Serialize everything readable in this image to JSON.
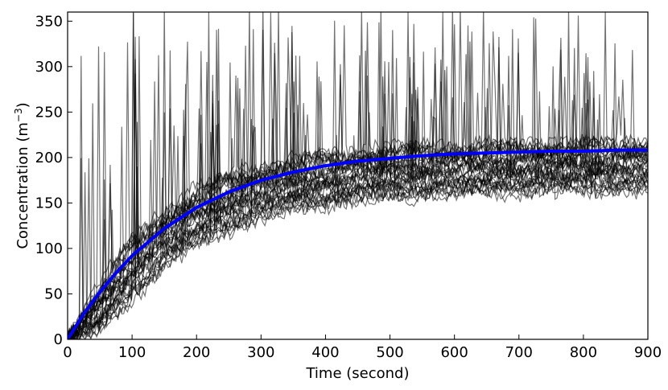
{
  "chart_data": {
    "type": "line",
    "title": "",
    "xlabel": "Time (second)",
    "ylabel_prefix": "Concentration (m",
    "ylabel_exponent": "−3",
    "ylabel_suffix": ")",
    "xlim": [
      0,
      900
    ],
    "ylim": [
      0,
      360
    ],
    "x_ticks": [
      0,
      100,
      200,
      300,
      400,
      500,
      600,
      700,
      800,
      900
    ],
    "y_ticks": [
      0,
      50,
      100,
      150,
      200,
      250,
      300,
      350
    ],
    "grid": false,
    "legend": "none",
    "series": [
      {
        "role": "mean",
        "color": "#0000ff",
        "x": [
          0,
          25,
          50,
          75,
          100,
          150,
          200,
          250,
          300,
          350,
          400,
          450,
          500,
          550,
          600,
          650,
          700,
          750,
          800,
          850,
          900
        ],
        "values": [
          0,
          28,
          52,
          73,
          92,
          122,
          145,
          162,
          175,
          184,
          191,
          196,
          199,
          202,
          204,
          205,
          206,
          207,
          207,
          208,
          208
        ]
      }
    ],
    "stochastic_trajectories": {
      "color": "#000000",
      "opacity": 0.55,
      "envelope_x": [
        0,
        50,
        100,
        150,
        200,
        250,
        300,
        350,
        400,
        450,
        500,
        550,
        600,
        650,
        700,
        750,
        800,
        850,
        900
      ],
      "lower_envelope": [
        0,
        8,
        45,
        80,
        103,
        120,
        133,
        142,
        148,
        153,
        156,
        158,
        160,
        161,
        162,
        163,
        163,
        164,
        164
      ],
      "upper_envelope": [
        0,
        60,
        110,
        140,
        165,
        180,
        190,
        198,
        203,
        207,
        210,
        212,
        213,
        214,
        215,
        216,
        216,
        217,
        217
      ],
      "spike_max": 360
    }
  }
}
